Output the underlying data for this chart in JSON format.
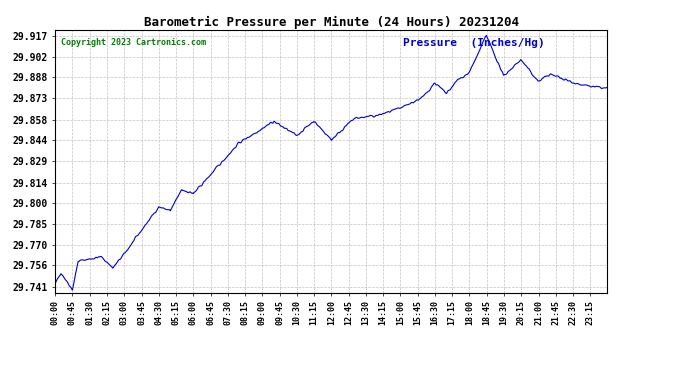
{
  "title": "Barometric Pressure per Minute (24 Hours) 20231204",
  "copyright": "Copyright 2023 Cartronics.com",
  "legend_label": "Pressure  (Inches/Hg)",
  "line_color": "#0000CC",
  "bg_color": "#ffffff",
  "grid_color": "#aaaaaa",
  "yticks": [
    29.741,
    29.756,
    29.77,
    29.785,
    29.8,
    29.814,
    29.829,
    29.844,
    29.858,
    29.873,
    29.888,
    29.902,
    29.917
  ],
  "xtick_labels": [
    "00:00",
    "00:45",
    "01:30",
    "02:15",
    "03:00",
    "03:45",
    "04:30",
    "05:15",
    "06:00",
    "06:45",
    "07:30",
    "08:15",
    "09:00",
    "09:45",
    "10:30",
    "11:15",
    "12:00",
    "12:45",
    "13:30",
    "14:15",
    "15:00",
    "15:45",
    "16:30",
    "17:15",
    "18:00",
    "18:45",
    "19:30",
    "20:15",
    "21:00",
    "21:45",
    "22:30",
    "23:15"
  ],
  "ylim": [
    29.737,
    29.921
  ],
  "num_points": 1440
}
